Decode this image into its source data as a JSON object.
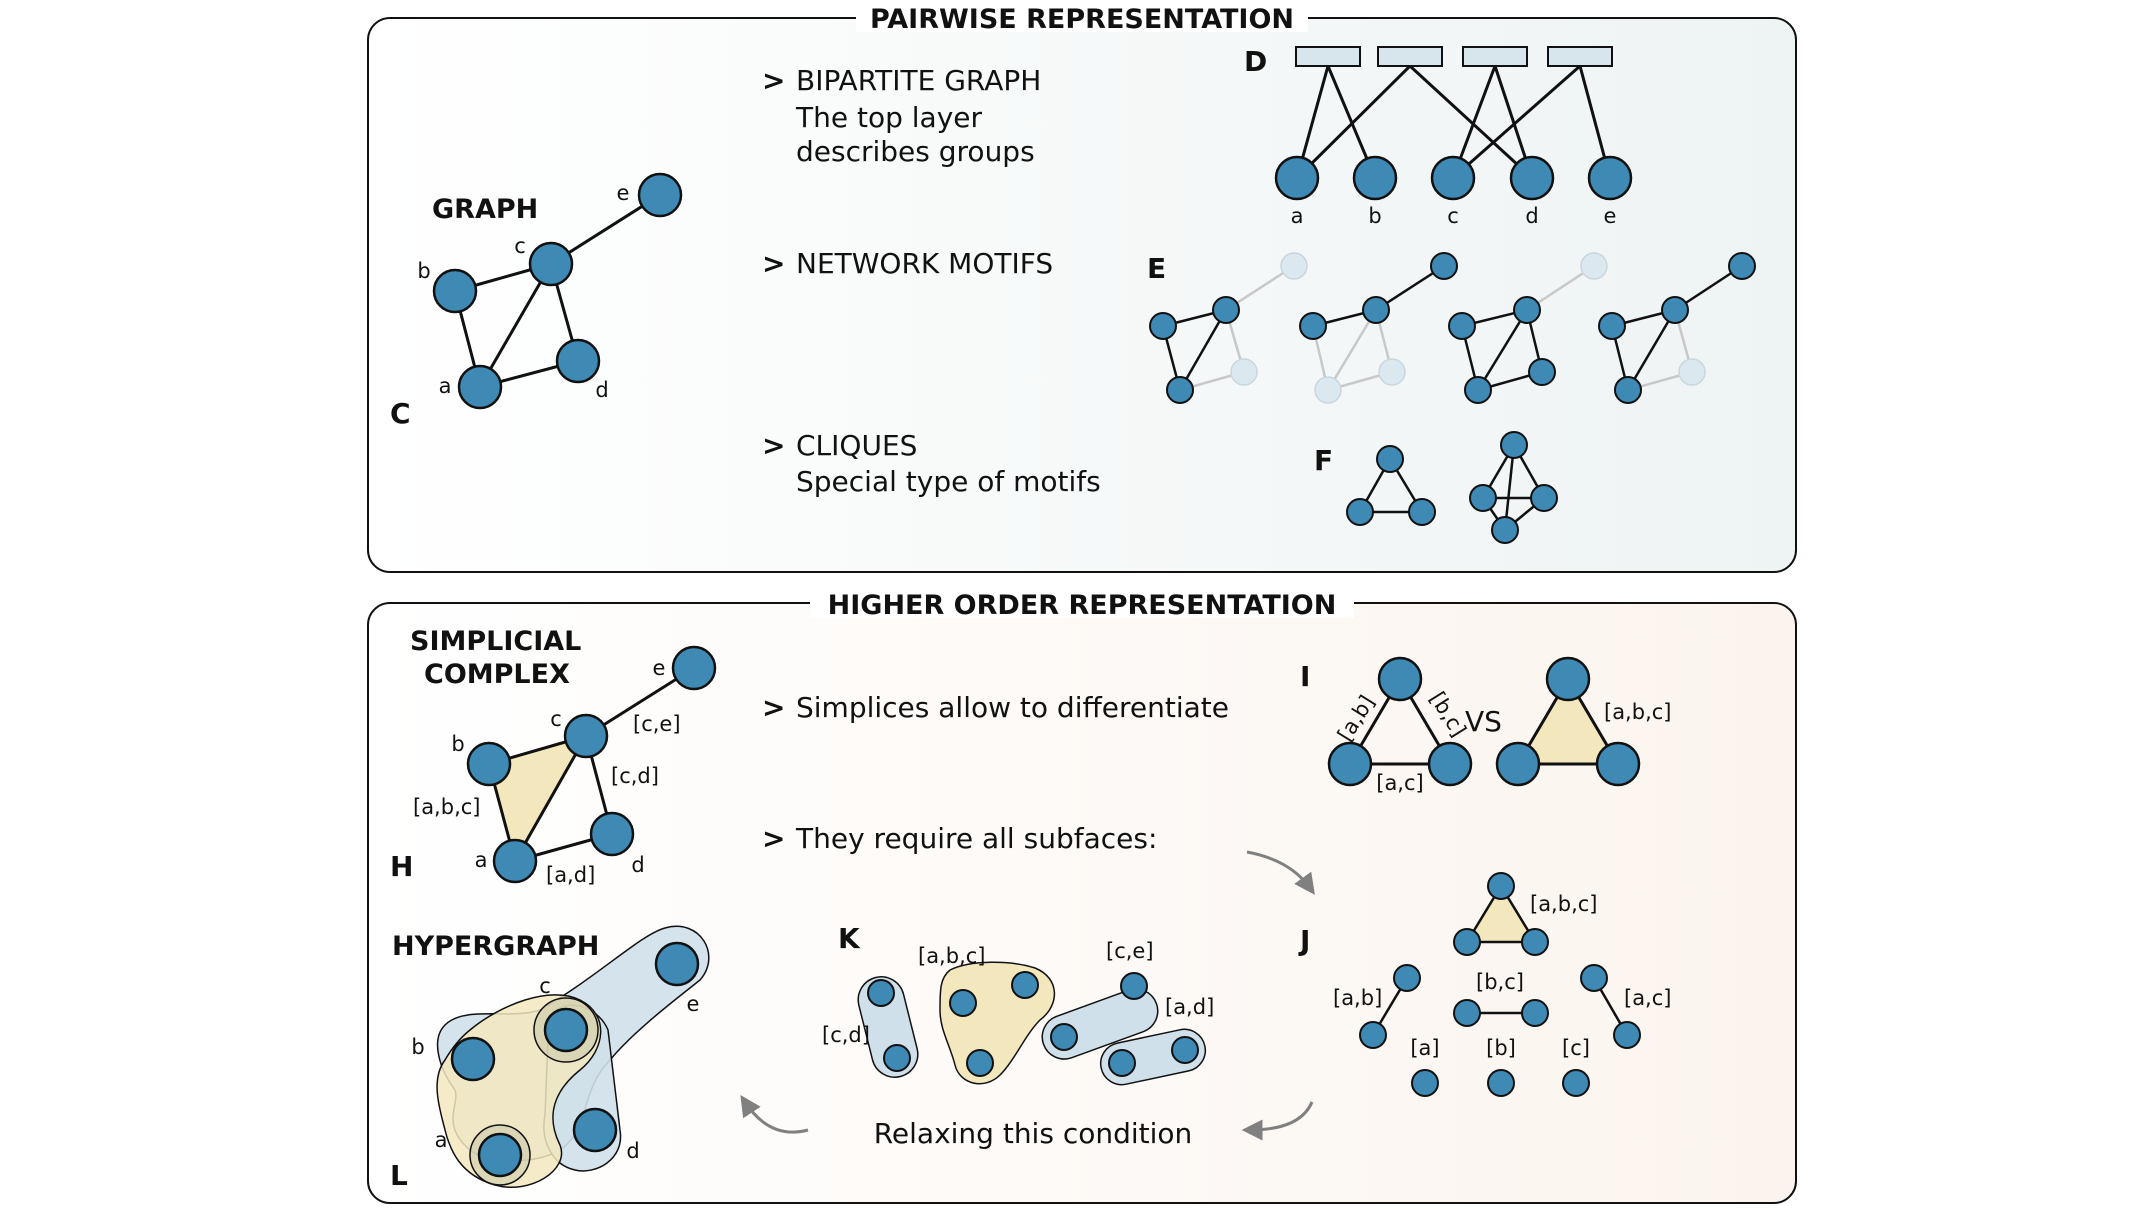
{
  "top_panel": {
    "title": "PAIRWISE REPRESENTATION",
    "graph": {
      "title": "GRAPH",
      "panel_letter": "C",
      "node_labels": [
        "a",
        "b",
        "c",
        "d",
        "e"
      ]
    },
    "bipartite": {
      "marker": ">",
      "heading": "BIPARTITE GRAPH",
      "line1": "The top layer",
      "line2": "describes groups",
      "panel_letter": "D",
      "node_labels": [
        "a",
        "b",
        "c",
        "d",
        "e"
      ]
    },
    "motifs": {
      "marker": ">",
      "heading": "NETWORK MOTIFS",
      "panel_letter": "E"
    },
    "cliques": {
      "marker": ">",
      "heading": "CLIQUES",
      "line1": "Special type of motifs",
      "panel_letter": "F"
    }
  },
  "bottom_panel": {
    "title": "HIGHER ORDER REPRESENTATION",
    "simplicial": {
      "title_line1": "SIMPLICIAL",
      "title_line2": "COMPLEX",
      "panel_letter": "H",
      "node_labels": [
        "a",
        "b",
        "c",
        "d",
        "e"
      ],
      "edge_labels": [
        "[c,e]",
        "[c,d]",
        "[a,b,c]",
        "[a,d]"
      ]
    },
    "differentiate": {
      "marker": ">",
      "text": "Simplices allow to differentiate",
      "panel_letter": "I",
      "edge_labels": [
        "[a,b]",
        "[b,c]",
        "[a,c]"
      ],
      "vs": "VS",
      "face_label": "[a,b,c]"
    },
    "subfaces": {
      "marker": ">",
      "text": "They require all subfaces:",
      "panel_letter": "J",
      "labels": [
        "[a,b,c]",
        "[a,b]",
        "[b,c]",
        "[a,c]",
        "[a]",
        "[b]",
        "[c]"
      ]
    },
    "hypergraph": {
      "title": "HYPERGRAPH",
      "panel_letter": "L",
      "node_labels": [
        "a",
        "b",
        "c",
        "d",
        "e"
      ]
    },
    "relax": {
      "panel_letter": "K",
      "labels": [
        "[a,b,c]",
        "[c,e]",
        "[c,d]",
        "[a,d]"
      ],
      "text": "Relaxing this condition"
    }
  },
  "colors": {
    "node": "#3f89b5",
    "node_faded": "#dce8f0",
    "edge_faded": "#c8c8c8",
    "face": "#f3e7be",
    "hyper_blue": "#cfe0ea",
    "arrow": "#808080"
  }
}
